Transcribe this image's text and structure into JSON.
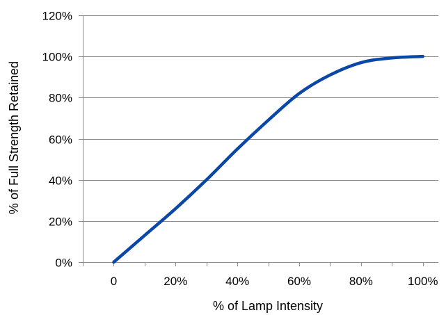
{
  "chart_data": {
    "type": "line",
    "title": "",
    "xlabel": "% of Lamp Intensity",
    "ylabel": "% of Full Strength Retained",
    "xlim": [
      -10,
      105
    ],
    "ylim": [
      0,
      120
    ],
    "grid": true,
    "legend": "none",
    "x_ticks": [
      0,
      20,
      40,
      60,
      80,
      100
    ],
    "x_tick_labels": [
      "0",
      "20%",
      "40%",
      "60%",
      "80%",
      "100%"
    ],
    "y_ticks": [
      0,
      20,
      40,
      60,
      80,
      100,
      120
    ],
    "y_tick_labels": [
      "0%",
      "20%",
      "40%",
      "60%",
      "80%",
      "100%",
      "120%"
    ],
    "series": [
      {
        "x": [
          0,
          10,
          20,
          30,
          40,
          50,
          60,
          70,
          80,
          90,
          100
        ],
        "values": [
          0,
          13,
          26,
          40,
          55,
          69,
          82,
          91,
          97,
          99.3,
          100
        ]
      }
    ]
  },
  "colors": {
    "line": "#0a47a6",
    "grid": "#8c8c8c",
    "axis": "#8c8c8c",
    "text": "#000000"
  }
}
